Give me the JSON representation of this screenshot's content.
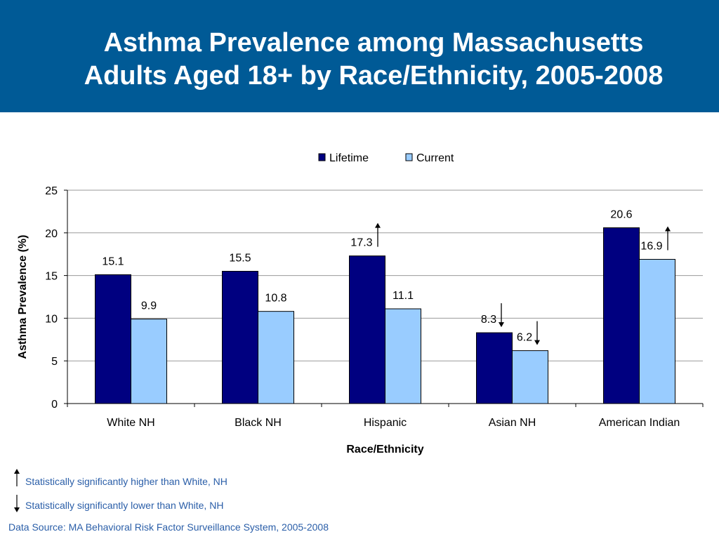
{
  "title": {
    "line1": "Asthma Prevalence among Massachusetts",
    "line2": "Adults Aged 18+ by Race/Ethnicity, 2005-2008"
  },
  "colors": {
    "header_bg": "#005a96",
    "lifetime": "#000080",
    "current": "#99ccff",
    "note_text": "#2a5ea8"
  },
  "chart_data": {
    "type": "bar",
    "categories": [
      "White NH",
      "Black NH",
      "Hispanic",
      "Asian NH",
      "American Indian"
    ],
    "series": [
      {
        "name": "Lifetime",
        "values": [
          15.1,
          15.5,
          17.3,
          8.3,
          20.6
        ],
        "color": "#000080",
        "labels": [
          "15.1",
          "15.5",
          "17.3",
          "8.3",
          "20.6"
        ],
        "significance": [
          "none",
          "none",
          "higher",
          "lower",
          "none"
        ]
      },
      {
        "name": "Current",
        "values": [
          9.9,
          10.8,
          11.1,
          6.2,
          16.9
        ],
        "color": "#99ccff",
        "labels": [
          "9.9",
          "10.8",
          "11.1",
          "6.2",
          "16.9"
        ],
        "significance": [
          "none",
          "none",
          "none",
          "lower",
          "higher"
        ]
      }
    ],
    "xlabel": "Race/Ethnicity",
    "ylabel": "Asthma Prevalence (%)",
    "ylim": [
      0,
      25
    ],
    "yticks": [
      0,
      5,
      10,
      15,
      20,
      25
    ],
    "grid": true,
    "legend_position": "top-center"
  },
  "notes": {
    "higher": "Statistically significantly higher than White, NH",
    "lower": "Statistically significantly lower than White, NH"
  },
  "source": "Data Source: MA Behavioral Risk Factor Surveillance System, 2005-2008"
}
